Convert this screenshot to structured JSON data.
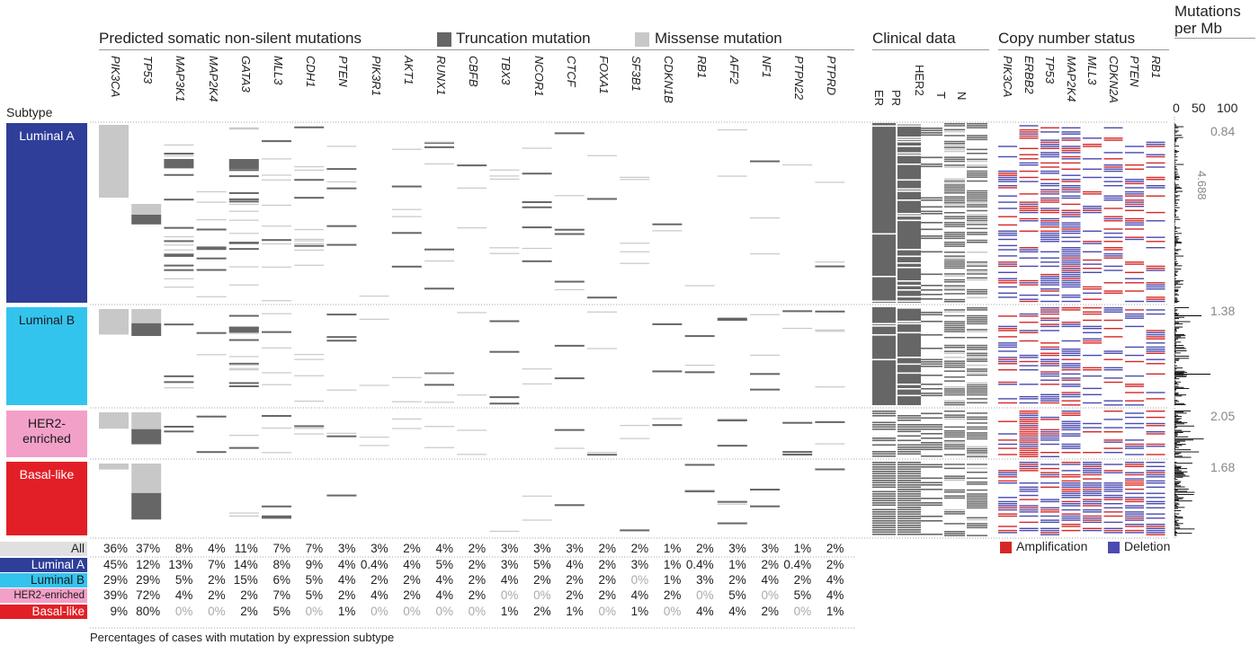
{
  "header": {
    "mutations_title": "Predicted somatic non-silent mutations",
    "legend_truncation": "Truncation mutation",
    "legend_missense": "Missense mutation",
    "clinical_title": "Clinical data",
    "copy_title": "Copy number status",
    "mutmb_title_1": "Mutations",
    "mutmb_title_2": "per Mb",
    "subtype_label": "Subtype",
    "footer": "Percentages of cases with mutation by expression subtype",
    "legend_amp": "Amplification",
    "legend_del": "Deletion"
  },
  "colors": {
    "truncation": "#666666",
    "missense": "#c8c8c8",
    "amplification": "#d62728",
    "deletion": "#4a4ab0",
    "luminal_a": "#2e3e99",
    "luminal_b": "#33c4ee",
    "her2": "#f3a0c8",
    "basal": "#e21f26",
    "all": "#e0e0e0"
  },
  "chart_data": {
    "type": "heatmap",
    "genes": [
      "PIK3CA",
      "TP53",
      "MAP3K1",
      "MAP2K4",
      "GATA3",
      "MLL3",
      "CDH1",
      "PTEN",
      "PIK3R1",
      "AKT1",
      "RUNX1",
      "CBFB",
      "TBX3",
      "NCOR1",
      "CTCF",
      "FOXA1",
      "SF3B1",
      "CDKN1B",
      "RB1",
      "AFF2",
      "NF1",
      "PTPN22",
      "PTPRD"
    ],
    "clinical_columns": [
      "ER",
      "PR",
      "HER2",
      "T",
      "N"
    ],
    "cnv_genes": [
      "PIK3CA",
      "ERBB2",
      "TP53",
      "MAP2K4",
      "MLL3",
      "CDKN2A",
      "PTEN",
      "RB1"
    ],
    "subtypes": [
      {
        "name": "Luminal A",
        "key": "luminal_a"
      },
      {
        "name": "Luminal B",
        "key": "luminal_b"
      },
      {
        "name": "HER2-\nenriched",
        "key": "her2"
      },
      {
        "name": "Basal-like",
        "key": "basal"
      }
    ],
    "mutation_rate_axis": {
      "ticks": [
        "0",
        "50",
        "100"
      ],
      "range": [
        0,
        100
      ]
    },
    "mutation_rate_labels": [
      "0.84",
      "4.688",
      "1.38",
      "2.05",
      "1.68"
    ],
    "percent_rows": [
      {
        "label": "All",
        "key": "all",
        "values": [
          "36%",
          "37%",
          "8%",
          "4%",
          "11%",
          "7%",
          "7%",
          "3%",
          "3%",
          "2%",
          "4%",
          "2%",
          "3%",
          "3%",
          "3%",
          "2%",
          "2%",
          "1%",
          "2%",
          "3%",
          "3%",
          "1%",
          "2%"
        ]
      },
      {
        "label": "Luminal A",
        "key": "luminal_a",
        "values": [
          "45%",
          "12%",
          "13%",
          "7%",
          "14%",
          "8%",
          "9%",
          "4%",
          "0.4%",
          "4%",
          "5%",
          "2%",
          "3%",
          "5%",
          "4%",
          "2%",
          "3%",
          "1%",
          "0.4%",
          "1%",
          "2%",
          "0.4%",
          "2%"
        ]
      },
      {
        "label": "Luminal B",
        "key": "luminal_b",
        "values": [
          "29%",
          "29%",
          "5%",
          "2%",
          "15%",
          "6%",
          "5%",
          "4%",
          "2%",
          "2%",
          "4%",
          "2%",
          "4%",
          "2%",
          "2%",
          "2%",
          "0%",
          "1%",
          "3%",
          "2%",
          "4%",
          "2%",
          "4%"
        ]
      },
      {
        "label": "HER2-enriched",
        "key": "her2",
        "values": [
          "39%",
          "72%",
          "4%",
          "2%",
          "2%",
          "7%",
          "5%",
          "2%",
          "4%",
          "2%",
          "4%",
          "2%",
          "0%",
          "0%",
          "2%",
          "2%",
          "4%",
          "2%",
          "0%",
          "5%",
          "0%",
          "5%",
          "4%"
        ]
      },
      {
        "label": "Basal-like",
        "key": "basal",
        "values": [
          "9%",
          "80%",
          "0%",
          "0%",
          "2%",
          "5%",
          "0%",
          "1%",
          "0%",
          "0%",
          "0%",
          "0%",
          "1%",
          "2%",
          "1%",
          "0%",
          "1%",
          "0%",
          "4%",
          "4%",
          "2%",
          "0%",
          "1%"
        ]
      }
    ]
  }
}
